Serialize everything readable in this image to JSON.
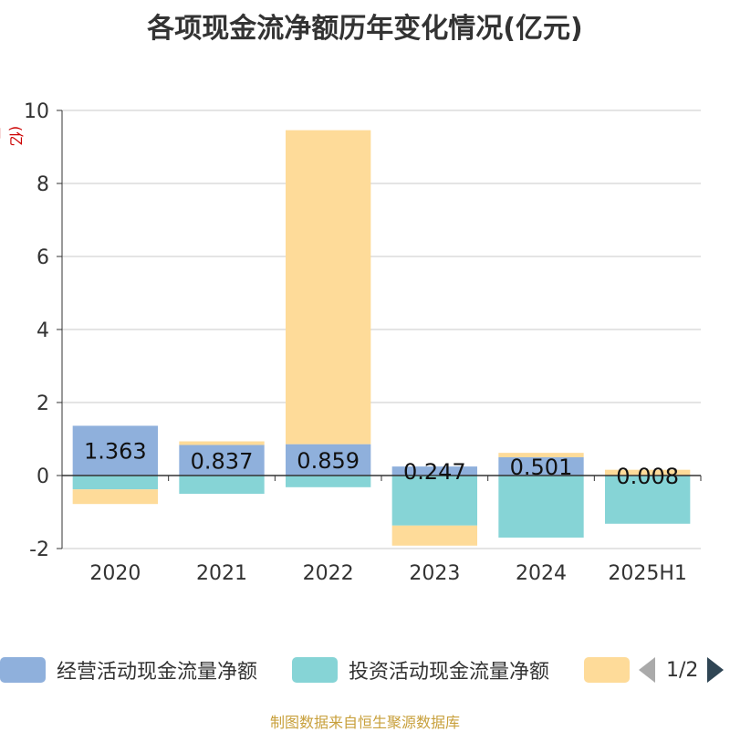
{
  "title": "各项现金流净额历年变化情况(亿元)",
  "unit_label": "(亿元)",
  "source": "制图数据来自恒生聚源数据库",
  "legend": {
    "items": [
      {
        "label": "经营活动现金流量净额",
        "color": "#8fb0dc"
      },
      {
        "label": "投资活动现金流量净额",
        "color": "#86d4d6"
      },
      {
        "label": "",
        "color": "#fedb99"
      }
    ],
    "page": "1/2"
  },
  "chart_data": {
    "type": "bar",
    "stacked": true,
    "categories": [
      "2020",
      "2021",
      "2022",
      "2023",
      "2024",
      "2025H1"
    ],
    "ylim": [
      -2,
      10
    ],
    "yticks": [
      -2,
      0,
      2,
      4,
      6,
      8,
      10
    ],
    "grid": true,
    "series": [
      {
        "name": "经营活动现金流量净额",
        "color": "#8fb0dc",
        "values": [
          1.363,
          0.837,
          0.859,
          0.247,
          0.501,
          0.008
        ],
        "labels": [
          "1.363",
          "0.837",
          "0.859",
          "0.247",
          "0.501",
          "0.008"
        ]
      },
      {
        "name": "投资活动现金流量净额",
        "color": "#86d4d6",
        "values": [
          -0.38,
          -0.5,
          -0.32,
          -1.37,
          -1.7,
          -1.32
        ]
      },
      {
        "color": "#fedb99",
        "values": [
          -0.4,
          0.1,
          8.6,
          -0.55,
          0.12,
          0.15
        ]
      }
    ]
  }
}
